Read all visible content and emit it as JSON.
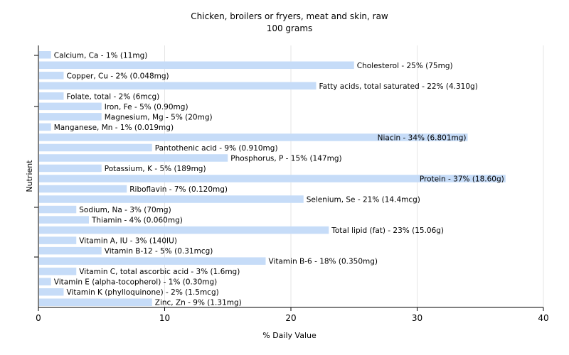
{
  "chart_data": {
    "type": "bar",
    "orientation": "horizontal",
    "title": "Chicken, broilers or fryers, meat and skin, raw",
    "subtitle": "100 grams",
    "xlabel": "% Daily Value",
    "ylabel": "Nutrient",
    "xlim": [
      0,
      40
    ],
    "xticks": [
      0,
      10,
      20,
      30,
      40
    ],
    "grid": true,
    "bar_color": "#c6dcf8",
    "categories": [
      "Calcium, Ca",
      "Cholesterol",
      "Copper, Cu",
      "Fatty acids, total saturated",
      "Folate, total",
      "Iron, Fe",
      "Magnesium, Mg",
      "Manganese, Mn",
      "Niacin",
      "Pantothenic acid",
      "Phosphorus, P",
      "Potassium, K",
      "Protein",
      "Riboflavin",
      "Selenium, Se",
      "Sodium, Na",
      "Thiamin",
      "Total lipid (fat)",
      "Vitamin A, IU",
      "Vitamin B-12",
      "Vitamin B-6",
      "Vitamin C, total ascorbic acid",
      "Vitamin E (alpha-tocopherol)",
      "Vitamin K (phylloquinone)",
      "Zinc, Zn"
    ],
    "values": [
      1,
      25,
      2,
      22,
      2,
      5,
      5,
      1,
      34,
      9,
      15,
      5,
      37,
      7,
      21,
      3,
      4,
      23,
      3,
      5,
      18,
      3,
      1,
      2,
      9
    ],
    "labels": [
      "Calcium, Ca - 1% (11mg)",
      "Cholesterol - 25% (75mg)",
      "Copper, Cu - 2% (0.048mg)",
      "Fatty acids, total saturated - 22% (4.310g)",
      "Folate, total - 2% (6mcg)",
      "Iron, Fe - 5% (0.90mg)",
      "Magnesium, Mg - 5% (20mg)",
      "Manganese, Mn - 1% (0.019mg)",
      "Niacin - 34% (6.801mg)",
      "Pantothenic acid - 9% (0.910mg)",
      "Phosphorus, P - 15% (147mg)",
      "Potassium, K - 5% (189mg)",
      "Protein - 37% (18.60g)",
      "Riboflavin - 7% (0.120mg)",
      "Selenium, Se - 21% (14.4mcg)",
      "Sodium, Na - 3% (70mg)",
      "Thiamin - 4% (0.060mg)",
      "Total lipid (fat) - 23% (15.06g)",
      "Vitamin A, IU - 3% (140IU)",
      "Vitamin B-12 - 5% (0.31mcg)",
      "Vitamin B-6 - 18% (0.350mg)",
      "Vitamin C, total ascorbic acid - 3% (1.6mg)",
      "Vitamin E (alpha-tocopherol) - 1% (0.30mg)",
      "Vitamin K (phylloquinone) - 2% (1.5mcg)",
      "Zinc, Zn - 9% (1.31mg)"
    ],
    "labels_inside_bar": [
      "Niacin - 34% (6.801mg)",
      "Protein - 37% (18.60g)"
    ]
  }
}
